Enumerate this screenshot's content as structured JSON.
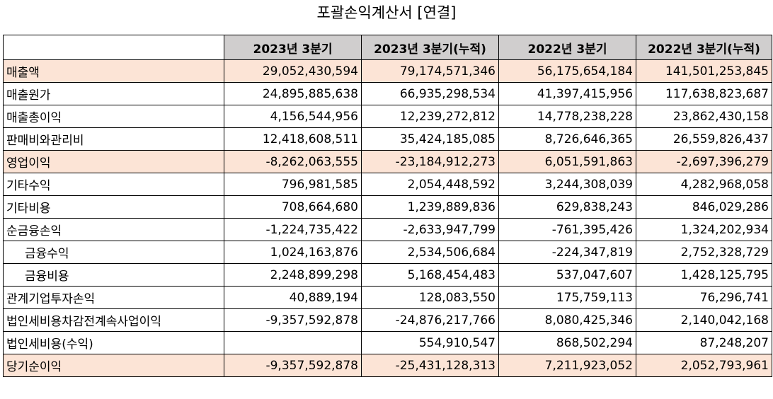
{
  "title": "포괄손익계산서 [연결]",
  "columns": [
    "",
    "2023년 3분기",
    "2023년 3분기(누적)",
    "2022년 3분기",
    "2022년 3분기(누적)"
  ],
  "highlight_color": "#fce4d6",
  "header_color": "#d0cece",
  "rows": [
    {
      "label": "매출액",
      "values": [
        "29,052,430,594",
        "79,174,571,346",
        "56,175,654,184",
        "141,501,253,845"
      ],
      "highlight": true,
      "indent": false
    },
    {
      "label": "매출원가",
      "values": [
        "24,895,885,638",
        "66,935,298,534",
        "41,397,415,956",
        "117,638,823,687"
      ],
      "highlight": false,
      "indent": false
    },
    {
      "label": "매출총이익",
      "values": [
        "4,156,544,956",
        "12,239,272,812",
        "14,778,238,228",
        "23,862,430,158"
      ],
      "highlight": false,
      "indent": false
    },
    {
      "label": "판매비와관리비",
      "values": [
        "12,418,608,511",
        "35,424,185,085",
        "8,726,646,365",
        "26,559,826,437"
      ],
      "highlight": false,
      "indent": false
    },
    {
      "label": "영업이익",
      "values": [
        "-8,262,063,555",
        "-23,184,912,273",
        "6,051,591,863",
        "-2,697,396,279"
      ],
      "highlight": true,
      "indent": false
    },
    {
      "label": "기타수익",
      "values": [
        "796,981,585",
        "2,054,448,592",
        "3,244,308,039",
        "4,282,968,058"
      ],
      "highlight": false,
      "indent": false
    },
    {
      "label": "기타비용",
      "values": [
        "708,664,680",
        "1,239,889,836",
        "629,838,243",
        "846,029,286"
      ],
      "highlight": false,
      "indent": false
    },
    {
      "label": "순금융손익",
      "values": [
        "-1,224,735,422",
        "-2,633,947,799",
        "-761,395,426",
        "1,324,202,934"
      ],
      "highlight": false,
      "indent": false
    },
    {
      "label": "금융수익",
      "values": [
        "1,024,163,876",
        "2,534,506,684",
        "-224,347,819",
        "2,752,328,729"
      ],
      "highlight": false,
      "indent": true
    },
    {
      "label": "금융비용",
      "values": [
        "2,248,899,298",
        "5,168,454,483",
        "537,047,607",
        "1,428,125,795"
      ],
      "highlight": false,
      "indent": true
    },
    {
      "label": "관계기업투자손익",
      "values": [
        "40,889,194",
        "128,083,550",
        "175,759,113",
        "76,296,741"
      ],
      "highlight": false,
      "indent": false
    },
    {
      "label": "법인세비용차감전계속사업이익",
      "values": [
        "-9,357,592,878",
        "-24,876,217,766",
        "8,080,425,346",
        "2,140,042,168"
      ],
      "highlight": false,
      "indent": false
    },
    {
      "label": "법인세비용(수익)",
      "values": [
        "",
        "554,910,547",
        "868,502,294",
        "87,248,207"
      ],
      "highlight": false,
      "indent": false
    },
    {
      "label": "당기순이익",
      "values": [
        "-9,357,592,878",
        "-25,431,128,313",
        "7,211,923,052",
        "2,052,793,961"
      ],
      "highlight": true,
      "indent": false
    }
  ]
}
